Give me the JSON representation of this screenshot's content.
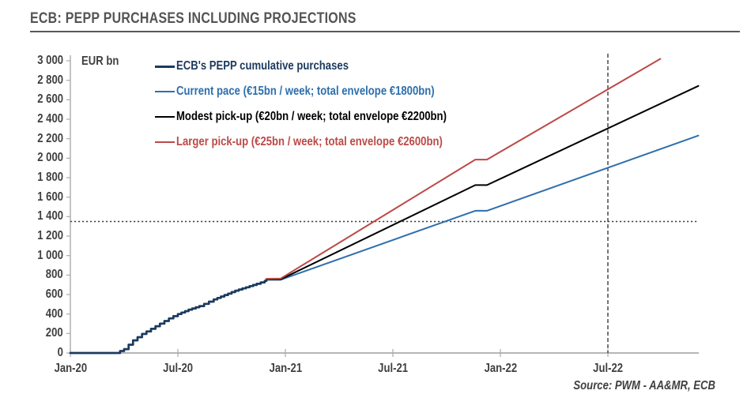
{
  "header": {
    "title": "ECB: PEPP PURCHASES INCLUDING PROJECTIONS"
  },
  "chart": {
    "unit_label": "EUR bn",
    "source": "Source: PWM - AA&MR, ECB"
  },
  "colors": {
    "actual_navy": "#1c3a5e",
    "current_pace_blue": "#2e6fad",
    "modest_pickup_black": "#000000",
    "larger_pickup_red": "#bc4a47",
    "axis_gray": "#ababab",
    "reference_line": "#3d3d3d",
    "text_gray": "#3f3f3f",
    "title_gray": "#545454"
  },
  "chart_data": {
    "type": "line",
    "title": "ECB: PEPP PURCHASES INCLUDING PROJECTIONS",
    "ylabel": "EUR bn",
    "ylim": [
      0,
      3000
    ],
    "y_tick_step": 200,
    "y_ticks": [
      {
        "value": 0,
        "label": "0"
      },
      {
        "value": 200,
        "label": "200"
      },
      {
        "value": 400,
        "label": "400"
      },
      {
        "value": 600,
        "label": "600"
      },
      {
        "value": 800,
        "label": "800"
      },
      {
        "value": 1000,
        "label": "1 000"
      },
      {
        "value": 1200,
        "label": "1 200"
      },
      {
        "value": 1400,
        "label": "1 400"
      },
      {
        "value": 1600,
        "label": "1 600"
      },
      {
        "value": 1800,
        "label": "1 800"
      },
      {
        "value": 2000,
        "label": "2 000"
      },
      {
        "value": 2200,
        "label": "2 200"
      },
      {
        "value": 2400,
        "label": "2 400"
      },
      {
        "value": 2600,
        "label": "2 600"
      },
      {
        "value": 2800,
        "label": "2 800"
      },
      {
        "value": 3000,
        "label": "3 000"
      }
    ],
    "x_ticks": [
      {
        "month": 0,
        "label": "Jan-20"
      },
      {
        "month": 6,
        "label": "Jul-20"
      },
      {
        "month": 12,
        "label": "Jan-21"
      },
      {
        "month": 18,
        "label": "Jul-21"
      },
      {
        "month": 24,
        "label": "Jan-22"
      },
      {
        "month": 30,
        "label": "Jul-22"
      }
    ],
    "x_unit": "months since Jan-2020",
    "reference_lines": {
      "horizontal_value": 1350,
      "vertical_month": 30,
      "vertical_at_label": "Jul-22"
    },
    "legend_position": "top-left-inside",
    "grid": false,
    "series": [
      {
        "name": "ECB's PEPP cumulative purchases",
        "color": "#1c3a5e",
        "width": 2.7,
        "stepped": true,
        "points": [
          [
            0,
            0
          ],
          [
            2.55,
            0
          ],
          [
            3.0,
            40
          ],
          [
            3.5,
            130
          ],
          [
            4.0,
            195
          ],
          [
            4.5,
            248
          ],
          [
            5.0,
            302
          ],
          [
            5.5,
            355
          ],
          [
            6.0,
            400
          ],
          [
            6.6,
            445
          ],
          [
            7.2,
            482
          ],
          [
            8.0,
            550
          ],
          [
            8.6,
            595
          ],
          [
            9.2,
            640
          ],
          [
            9.8,
            675
          ],
          [
            10.4,
            710
          ],
          [
            10.85,
            740
          ],
          [
            10.94,
            756
          ]
        ]
      },
      {
        "name": "Current pace (€15bn / week; total envelope €1800bn)",
        "color": "#2e6fad",
        "width": 2,
        "stepped": false,
        "points": [
          [
            10.94,
            752
          ],
          [
            11.73,
            752
          ],
          [
            22.6,
            1460
          ],
          [
            23.25,
            1460
          ],
          [
            35.05,
            2232
          ]
        ]
      },
      {
        "name": "Modest pick-up (€20bn / week; total envelope €2200bn)",
        "color": "#000000",
        "width": 2,
        "stepped": false,
        "points": [
          [
            10.94,
            756
          ],
          [
            11.73,
            756
          ],
          [
            22.6,
            1724
          ],
          [
            23.25,
            1724
          ],
          [
            35.05,
            2742
          ]
        ]
      },
      {
        "name": "Larger pick-up (€25bn / week; total envelope €2600bn)",
        "color": "#bc4a47",
        "width": 2,
        "stepped": false,
        "points": [
          [
            10.94,
            762
          ],
          [
            11.73,
            764
          ],
          [
            22.6,
            1986
          ],
          [
            23.25,
            1986
          ],
          [
            32.93,
            3020
          ]
        ]
      }
    ]
  }
}
